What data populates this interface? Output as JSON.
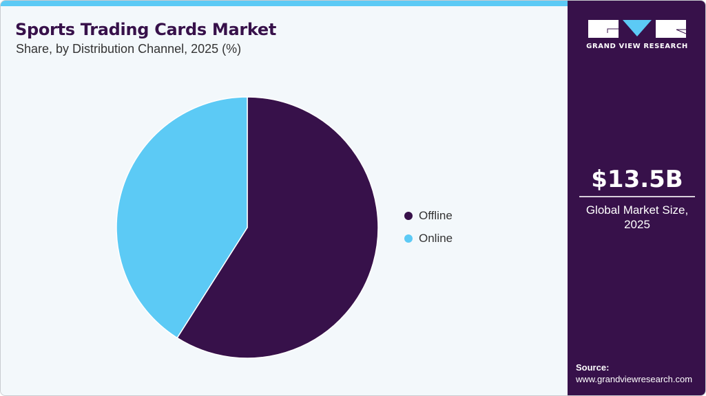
{
  "header": {
    "title": "Sports Trading Cards Market",
    "subtitle": "Share, by Distribution Channel, 2025 (%)"
  },
  "brand": {
    "name": "GRAND VIEW RESEARCH",
    "logo_icon": "gvr-logo-icon",
    "colors": {
      "primary": "#37114a",
      "accent": "#5ccaf5",
      "background": "#f3f8fb"
    }
  },
  "legend": {
    "items": [
      {
        "label": "Offline",
        "color": "#37114a"
      },
      {
        "label": "Online",
        "color": "#5ccaf5"
      }
    ]
  },
  "sidebar": {
    "market_value": "$13.5B",
    "market_label_line1": "Global Market Size,",
    "market_label_line2": "2025",
    "source_label": "Source:",
    "source_url": "www.grandviewresearch.com"
  },
  "chart_data": {
    "type": "pie",
    "title": "Sports Trading Cards Market",
    "subtitle": "Share, by Distribution Channel, 2025 (%)",
    "categories": [
      "Offline",
      "Online"
    ],
    "values": [
      59,
      41
    ],
    "colors": [
      "#37114a",
      "#5ccaf5"
    ],
    "start_angle": "12 o'clock, clockwise",
    "legend_position": "right",
    "data_labels": false
  }
}
